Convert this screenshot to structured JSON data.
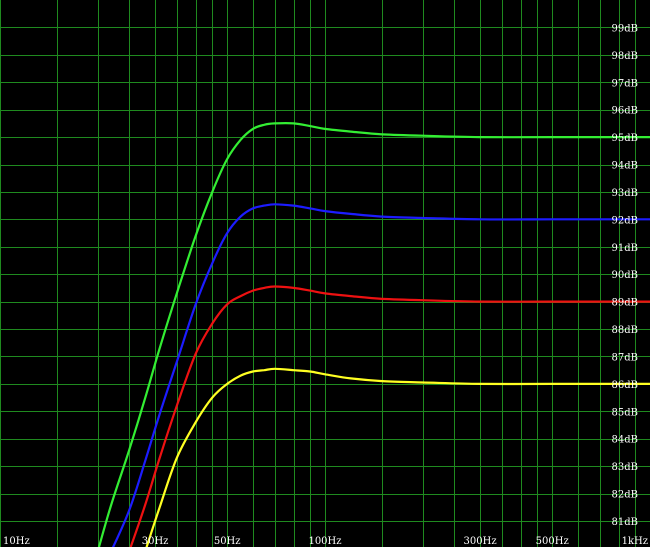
{
  "chart_data": {
    "type": "line",
    "title": "",
    "xlabel": "",
    "ylabel": "",
    "x_scale": "log",
    "xlim": [
      10,
      1000
    ],
    "ylim": [
      80.05,
      100
    ],
    "grid": true,
    "background_color": "#000000",
    "grid_color": "#1f8a1f",
    "label_color": "#ffffff",
    "x_ticks": [
      {
        "value": 10,
        "label": "10Hz"
      },
      {
        "value": 30,
        "label": "30Hz"
      },
      {
        "value": 50,
        "label": "50Hz"
      },
      {
        "value": 100,
        "label": "100Hz"
      },
      {
        "value": 300,
        "label": "300Hz"
      },
      {
        "value": 500,
        "label": "500Hz"
      },
      {
        "value": 1000,
        "label": "1kHz"
      }
    ],
    "x_gridlines": [
      10,
      15,
      20,
      25,
      30,
      35,
      40,
      45,
      50,
      60,
      70,
      80,
      90,
      100,
      150,
      200,
      250,
      300,
      350,
      400,
      450,
      500,
      600,
      700,
      800,
      900,
      1000
    ],
    "y_ticks": [
      {
        "value": 81,
        "label": "81dB"
      },
      {
        "value": 82,
        "label": "82dB"
      },
      {
        "value": 83,
        "label": "83dB"
      },
      {
        "value": 84,
        "label": "84dB"
      },
      {
        "value": 85,
        "label": "85dB"
      },
      {
        "value": 86,
        "label": "86dB"
      },
      {
        "value": 87,
        "label": "87dB"
      },
      {
        "value": 88,
        "label": "88dB"
      },
      {
        "value": 89,
        "label": "89dB"
      },
      {
        "value": 90,
        "label": "90dB"
      },
      {
        "value": 91,
        "label": "91dB"
      },
      {
        "value": 92,
        "label": "92dB"
      },
      {
        "value": 93,
        "label": "93dB"
      },
      {
        "value": 94,
        "label": "94dB"
      },
      {
        "value": 95,
        "label": "95dB"
      },
      {
        "value": 96,
        "label": "96dB"
      },
      {
        "value": 97,
        "label": "97dB"
      },
      {
        "value": 98,
        "label": "98dB"
      },
      {
        "value": 99,
        "label": "99dB"
      }
    ],
    "series": [
      {
        "color": "#33ee33",
        "x": [
          20,
          22,
          25,
          28,
          31,
          35,
          40,
          45,
          50,
          55,
          60,
          65,
          70,
          80,
          90,
          100,
          120,
          150,
          200,
          300,
          500,
          700,
          1000
        ],
        "y": [
          79.9,
          81.6,
          83.6,
          85.5,
          87.3,
          89.3,
          91.4,
          93.0,
          94.2,
          94.9,
          95.3,
          95.45,
          95.5,
          95.5,
          95.4,
          95.3,
          95.2,
          95.1,
          95.05,
          95.0,
          95.0,
          95.0,
          95.0
        ]
      },
      {
        "color": "#1c1cff",
        "x": [
          22,
          25,
          28,
          31,
          35,
          40,
          45,
          50,
          55,
          60,
          65,
          70,
          80,
          90,
          100,
          120,
          150,
          200,
          300,
          500,
          700,
          1000
        ],
        "y": [
          79.9,
          81.4,
          83.2,
          84.9,
          86.8,
          88.9,
          90.4,
          91.5,
          92.1,
          92.4,
          92.5,
          92.55,
          92.5,
          92.4,
          92.3,
          92.2,
          92.1,
          92.05,
          92.0,
          92.0,
          92.0,
          92.0
        ]
      },
      {
        "color": "#ee1111",
        "x": [
          25,
          28,
          31,
          35,
          40,
          45,
          50,
          55,
          60,
          65,
          70,
          80,
          90,
          100,
          120,
          150,
          200,
          300,
          500,
          700,
          1000
        ],
        "y": [
          79.9,
          81.6,
          83.3,
          85.2,
          87.1,
          88.2,
          88.9,
          89.2,
          89.4,
          89.5,
          89.55,
          89.5,
          89.4,
          89.3,
          89.2,
          89.1,
          89.05,
          89.0,
          89.0,
          89.0,
          89.0
        ]
      },
      {
        "color": "#ffff22",
        "x": [
          28,
          31,
          35,
          40,
          45,
          50,
          55,
          60,
          65,
          70,
          80,
          90,
          100,
          120,
          150,
          200,
          300,
          500,
          700,
          1000
        ],
        "y": [
          79.9,
          81.5,
          83.3,
          84.6,
          85.5,
          86.0,
          86.3,
          86.45,
          86.5,
          86.55,
          86.5,
          86.45,
          86.35,
          86.2,
          86.1,
          86.05,
          86.0,
          86.0,
          86.0,
          86.0
        ]
      }
    ]
  }
}
